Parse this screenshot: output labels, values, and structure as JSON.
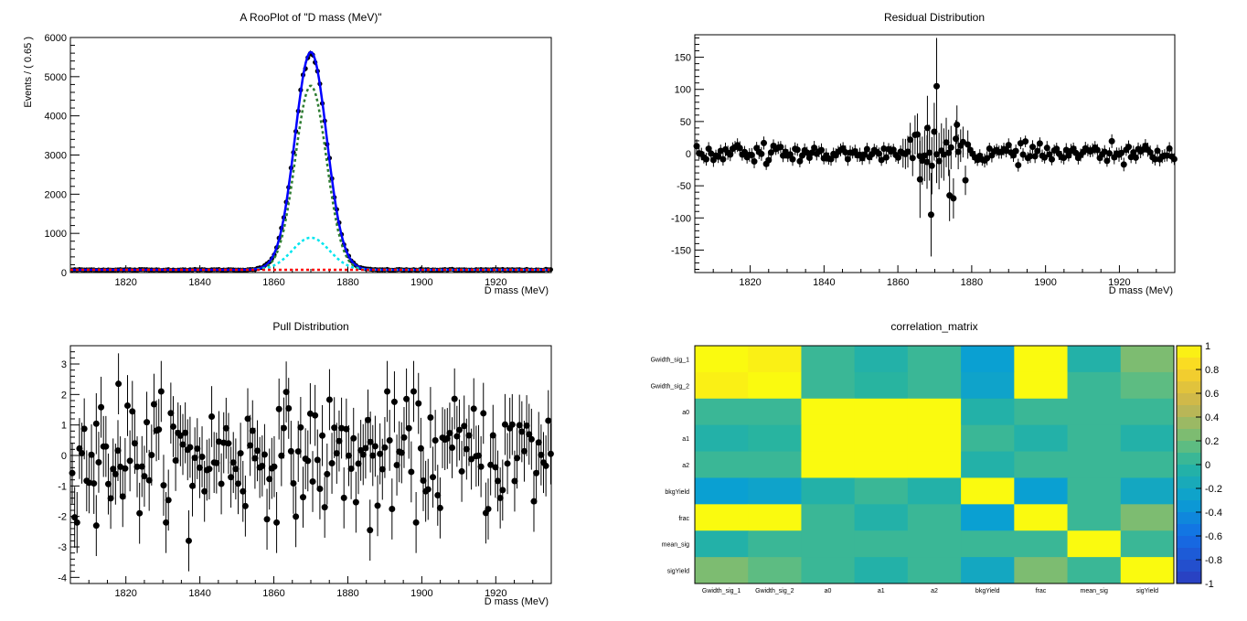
{
  "charts": [
    {
      "id": "fit",
      "type": "scatter",
      "title": "A RooPlot of \"D mass (MeV)\"",
      "xlabel": "D mass (MeV)",
      "ylabel": "Events / ( 0.65 )",
      "xlim": [
        1805,
        1935
      ],
      "ylim": [
        0,
        6000
      ],
      "xticks": [
        "1820",
        "1840",
        "1860",
        "1880",
        "1900",
        "1920"
      ],
      "yticks": [
        "0",
        "1000",
        "2000",
        "3000",
        "4000",
        "5000",
        "6000"
      ],
      "model": {
        "mean": 1870,
        "total_peak": 5650,
        "sig1_peak": 4700,
        "sig1_sigma": 4.2,
        "sig2_peak": 820,
        "sig2_sigma": 5.0,
        "background": 70,
        "colors": {
          "data": "#000000",
          "total": "#0000ff",
          "sig1": "#2e7d32",
          "sig2": "#00e5ee",
          "bkg": "#ff0000"
        }
      }
    },
    {
      "id": "residual",
      "type": "scatter",
      "title": "Residual Distribution",
      "xlabel": "D mass (MeV)",
      "xlim": [
        1805,
        1935
      ],
      "ylim": [
        -185,
        185
      ],
      "xticks": [
        "1820",
        "1840",
        "1860",
        "1880",
        "1900",
        "1920"
      ],
      "yticks": [
        "-150",
        "-100",
        "-50",
        "0",
        "50",
        "100",
        "150"
      ],
      "highlights": [
        {
          "x": 1869,
          "y": -95,
          "err": 65
        },
        {
          "x": 1870.5,
          "y": 105,
          "err": 75
        },
        {
          "x": 1874,
          "y": -65,
          "err": 40
        },
        {
          "x": 1866,
          "y": -40,
          "err": 60
        },
        {
          "x": 1868,
          "y": 40,
          "err": 50
        },
        {
          "x": 1876,
          "y": 45,
          "err": 30
        }
      ]
    },
    {
      "id": "pull",
      "type": "scatter",
      "title": "Pull Distribution",
      "xlabel": "D mass (MeV)",
      "xlim": [
        1805,
        1935
      ],
      "ylim": [
        -4.2,
        3.6
      ],
      "xticks": [
        "1820",
        "1840",
        "1860",
        "1880",
        "1900",
        "1920"
      ],
      "yticks": [
        "-4",
        "-3",
        "-2",
        "-1",
        "0",
        "1",
        "2",
        "3"
      ],
      "highlights": [
        {
          "x": 1818,
          "y": 2.35
        },
        {
          "x": 1812,
          "y": -2.3
        },
        {
          "x": 1837,
          "y": -2.8
        },
        {
          "x": 1886,
          "y": -2.45
        }
      ]
    },
    {
      "id": "corr",
      "type": "heatmap",
      "title": "correlation_matrix",
      "labels": [
        "Gwidth_sig_1",
        "Gwidth_sig_2",
        "a0",
        "a1",
        "a2",
        "bkgYield",
        "frac",
        "mean_sig",
        "sigYield"
      ],
      "colorbar_ticks": [
        "1",
        "0.8",
        "0.6",
        "0.4",
        "0.2",
        "0",
        "-0.2",
        "-0.4",
        "-0.6",
        "-0.8",
        "-1"
      ],
      "matrix": [
        [
          1.0,
          0.95,
          0.05,
          -0.05,
          0.05,
          -0.3,
          1.0,
          -0.05,
          0.25
        ],
        [
          0.95,
          1.0,
          0.05,
          0.0,
          0.05,
          -0.25,
          1.0,
          0.05,
          0.15
        ],
        [
          0.05,
          0.05,
          1.0,
          1.0,
          1.0,
          -0.05,
          0.05,
          0.05,
          0.05
        ],
        [
          -0.05,
          0.0,
          1.0,
          1.0,
          1.0,
          0.05,
          -0.05,
          0.05,
          -0.05
        ],
        [
          0.05,
          0.05,
          1.0,
          1.0,
          1.0,
          -0.05,
          0.05,
          0.05,
          0.05
        ],
        [
          -0.3,
          -0.25,
          -0.05,
          0.05,
          -0.05,
          1.0,
          -0.3,
          0.05,
          -0.2
        ],
        [
          1.0,
          1.0,
          0.05,
          -0.05,
          0.05,
          -0.3,
          1.0,
          0.05,
          0.25
        ],
        [
          -0.05,
          0.05,
          0.05,
          0.05,
          0.05,
          0.05,
          0.05,
          1.0,
          0.05
        ],
        [
          0.25,
          0.15,
          0.05,
          -0.05,
          0.05,
          -0.2,
          0.25,
          0.05,
          1.0
        ]
      ]
    }
  ]
}
